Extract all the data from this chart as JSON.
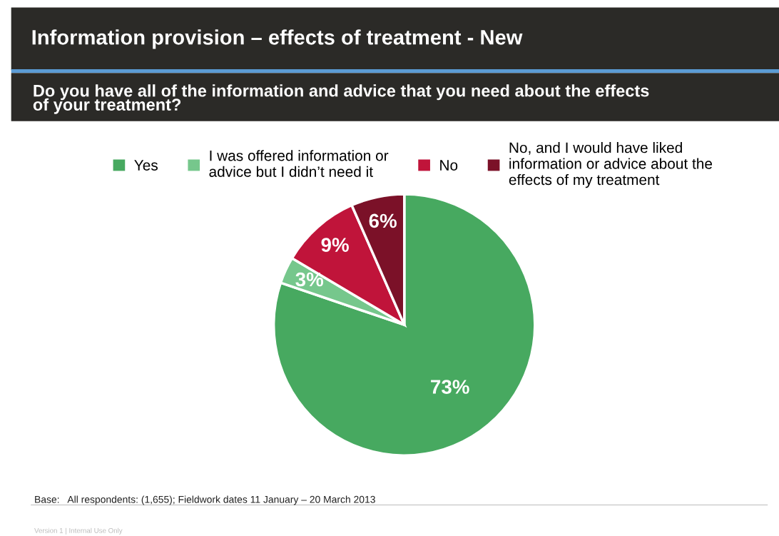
{
  "chart_data": {
    "type": "pie",
    "title": "Information provision – effects of treatment - New",
    "subtitle": "Do you have all of the information and advice that you need about the effects\nof your treatment?",
    "categories": [
      "Yes",
      "I was offered information or\nadvice but I didn’t need it",
      "No",
      "No, and I would have liked\ninformation or advice about the\neffects of my treatment"
    ],
    "values": [
      73,
      3,
      9,
      6
    ],
    "colors": [
      "#47a960",
      "#76c78c",
      "#c0143a",
      "#7b1128"
    ],
    "value_labels": [
      "73%",
      "3%",
      "9%",
      "6%"
    ],
    "legend": "top",
    "annotations": [
      "Base:   All respondents: (1,655); Fieldwork dates 11 January – 20 March 2013",
      "Version 1 | Internal Use Only"
    ]
  }
}
